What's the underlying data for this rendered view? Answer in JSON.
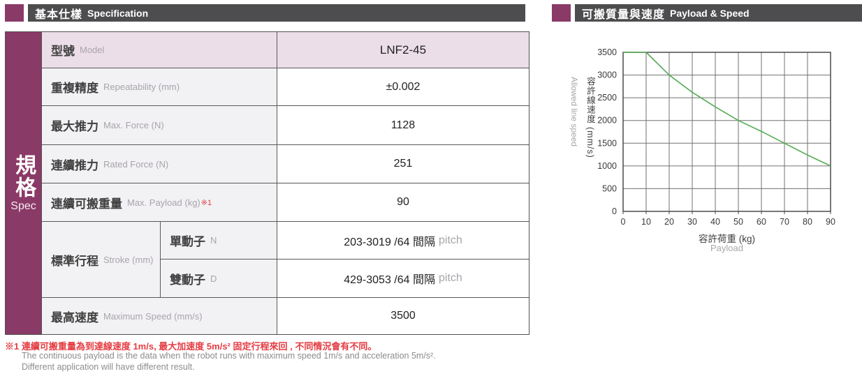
{
  "left_header": {
    "title_zh": "基本仕樣",
    "title_en": "Specification"
  },
  "right_header": {
    "title_zh": "可搬質量與速度",
    "title_en": "Payload & Speed"
  },
  "sidebar": {
    "zh": "規格",
    "en": "Spec"
  },
  "table": {
    "rows": [
      {
        "label_zh": "型號",
        "label_en": "Model",
        "value": "LNF2-45"
      },
      {
        "label_zh": "重複精度",
        "label_en": "Repeatability (mm)",
        "value": "±0.002"
      },
      {
        "label_zh": "最大推力",
        "label_en": "Max. Force (N)",
        "value": "1128"
      },
      {
        "label_zh": "連續推力",
        "label_en": "Rated Force (N)",
        "value": "251"
      },
      {
        "label_zh": "連續可搬重量",
        "label_en": "Max. Payload (kg)",
        "note_ref": "※1",
        "value": "90"
      },
      {
        "label_zh": "最高速度",
        "label_en": "Maximum Speed (mm/s)",
        "value": "3500"
      }
    ],
    "stroke_group": {
      "label_zh": "標準行程",
      "label_en": "Stroke (mm)",
      "subrows": [
        {
          "sub_zh": "單動子",
          "sub_en": "N",
          "value_main": "203-3019 /64 間隔",
          "value_gray": "pitch"
        },
        {
          "sub_zh": "雙動子",
          "sub_en": "D",
          "value_main": "429-3053 /64 間隔",
          "value_gray": "pitch"
        }
      ]
    }
  },
  "footnote": {
    "red": "※1 連續可搬重量為到達線速度 1m/s, 最大加速度 5m/s² 固定行程來回 , 不同情況會有不同。",
    "en1": "The continuous payload is the data when the robot runs with maximum speed 1m/s and acceleration 5m/s².",
    "en2": "Different application will have different result."
  },
  "chart_data": {
    "type": "line",
    "title": "可搬質量與速度 Payload & Speed",
    "xlabel_zh": "容許荷重 (kg)",
    "xlabel_en": "Payload",
    "ylabel_zh": "容許線速度 (mm/s)",
    "ylabel_en": "Allowed line speed",
    "xlim": [
      0,
      90
    ],
    "ylim": [
      0,
      3500
    ],
    "x_ticks": [
      0,
      10,
      20,
      30,
      40,
      50,
      60,
      70,
      80,
      90
    ],
    "y_ticks": [
      0,
      500,
      1000,
      1500,
      2000,
      2500,
      3000,
      3500
    ],
    "grid": true,
    "legend": "none",
    "line_color": "#55ab55",
    "series": [
      {
        "name": "allowed-line-speed",
        "points": [
          [
            0,
            3500
          ],
          [
            10,
            3500
          ],
          [
            20,
            3000
          ],
          [
            30,
            2620
          ],
          [
            40,
            2300
          ],
          [
            50,
            2000
          ],
          [
            60,
            1760
          ],
          [
            70,
            1500
          ],
          [
            80,
            1240
          ],
          [
            90,
            1000
          ]
        ]
      }
    ]
  }
}
